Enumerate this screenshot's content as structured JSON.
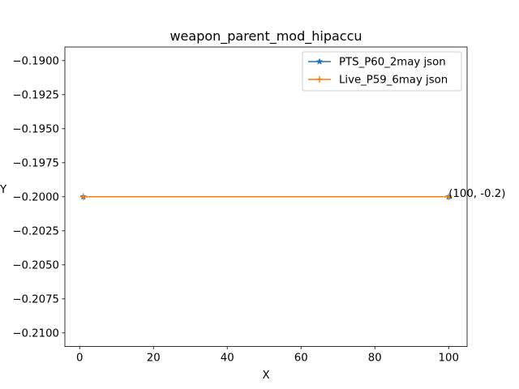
{
  "chart_data": {
    "type": "line",
    "title": "weapon_parent_mod_hipaccu",
    "xlabel": "X",
    "ylabel": "Y",
    "xlim": [
      -4.0,
      105.0
    ],
    "ylim": [
      -0.211,
      -0.189
    ],
    "x_ticks": [
      0,
      20,
      40,
      60,
      80,
      100
    ],
    "y_ticks": [
      -0.21,
      -0.2075,
      -0.205,
      -0.2025,
      -0.2,
      -0.1975,
      -0.195,
      -0.1925,
      -0.19
    ],
    "x_tick_labels": [
      "0",
      "20",
      "40",
      "60",
      "80",
      "100"
    ],
    "y_tick_labels": [
      "−0.2100",
      "−0.2075",
      "−0.2050",
      "−0.2025",
      "−0.2000",
      "−0.1975",
      "−0.1950",
      "−0.1925",
      "−0.1900"
    ],
    "grid": false,
    "legend_position": "top-right",
    "series": [
      {
        "name": "PTS_P60_2may json",
        "color": "#1f77b4",
        "marker": "star",
        "x": [
          1,
          100
        ],
        "y": [
          -0.2,
          -0.2
        ]
      },
      {
        "name": "Live_P59_6may json",
        "color": "#ff7f0e",
        "marker": "plus",
        "x": [
          1,
          100
        ],
        "y": [
          -0.2,
          -0.2
        ]
      }
    ],
    "annotations": [
      {
        "x": 100,
        "y": -0.2,
        "text": "(100, -0.2)"
      }
    ]
  }
}
